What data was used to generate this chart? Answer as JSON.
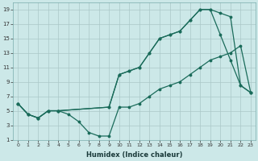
{
  "xlabel": "Humidex (Indice chaleur)",
  "bg_color": "#cce8e8",
  "grid_color": "#aac8c8",
  "line_color": "#1a6b5a",
  "xlim": [
    -0.5,
    23.5
  ],
  "ylim": [
    1,
    20
  ],
  "xticks": [
    0,
    1,
    2,
    3,
    4,
    5,
    6,
    7,
    8,
    9,
    10,
    11,
    12,
    13,
    14,
    15,
    16,
    17,
    18,
    19,
    20,
    21,
    22,
    23
  ],
  "yticks": [
    1,
    3,
    5,
    7,
    9,
    11,
    13,
    15,
    17,
    19
  ],
  "line1_x": [
    0,
    1,
    2,
    3,
    4,
    5,
    6,
    7,
    8,
    9,
    10,
    11,
    12,
    13,
    14,
    15,
    16,
    17,
    18,
    19,
    20,
    21,
    22,
    23
  ],
  "line1_y": [
    6,
    4.5,
    4,
    5,
    5,
    4.5,
    3.5,
    2,
    1.5,
    1.5,
    5.5,
    5.5,
    6,
    7,
    8,
    8.5,
    9,
    10,
    11,
    12,
    12.5,
    13,
    14,
    7.5
  ],
  "line2_x": [
    0,
    1,
    2,
    3,
    4,
    9,
    10,
    11,
    12,
    13,
    14,
    15,
    16,
    17,
    18,
    19,
    20,
    21,
    22,
    23
  ],
  "line2_y": [
    6,
    4.5,
    4,
    5,
    5,
    5.5,
    10,
    10.5,
    11,
    13,
    15,
    15.5,
    16,
    17.5,
    19,
    19,
    18.5,
    18,
    8.5,
    7.5
  ],
  "line3_x": [
    0,
    1,
    2,
    3,
    4,
    9,
    10,
    11,
    12,
    13,
    14,
    15,
    16,
    17,
    18,
    19,
    20,
    21,
    22,
    23
  ],
  "line3_y": [
    6,
    4.5,
    4,
    5,
    5,
    5.5,
    10,
    10.5,
    11,
    13,
    15,
    15.5,
    16,
    17.5,
    19,
    19,
    15.5,
    12,
    8.5,
    7.5
  ]
}
